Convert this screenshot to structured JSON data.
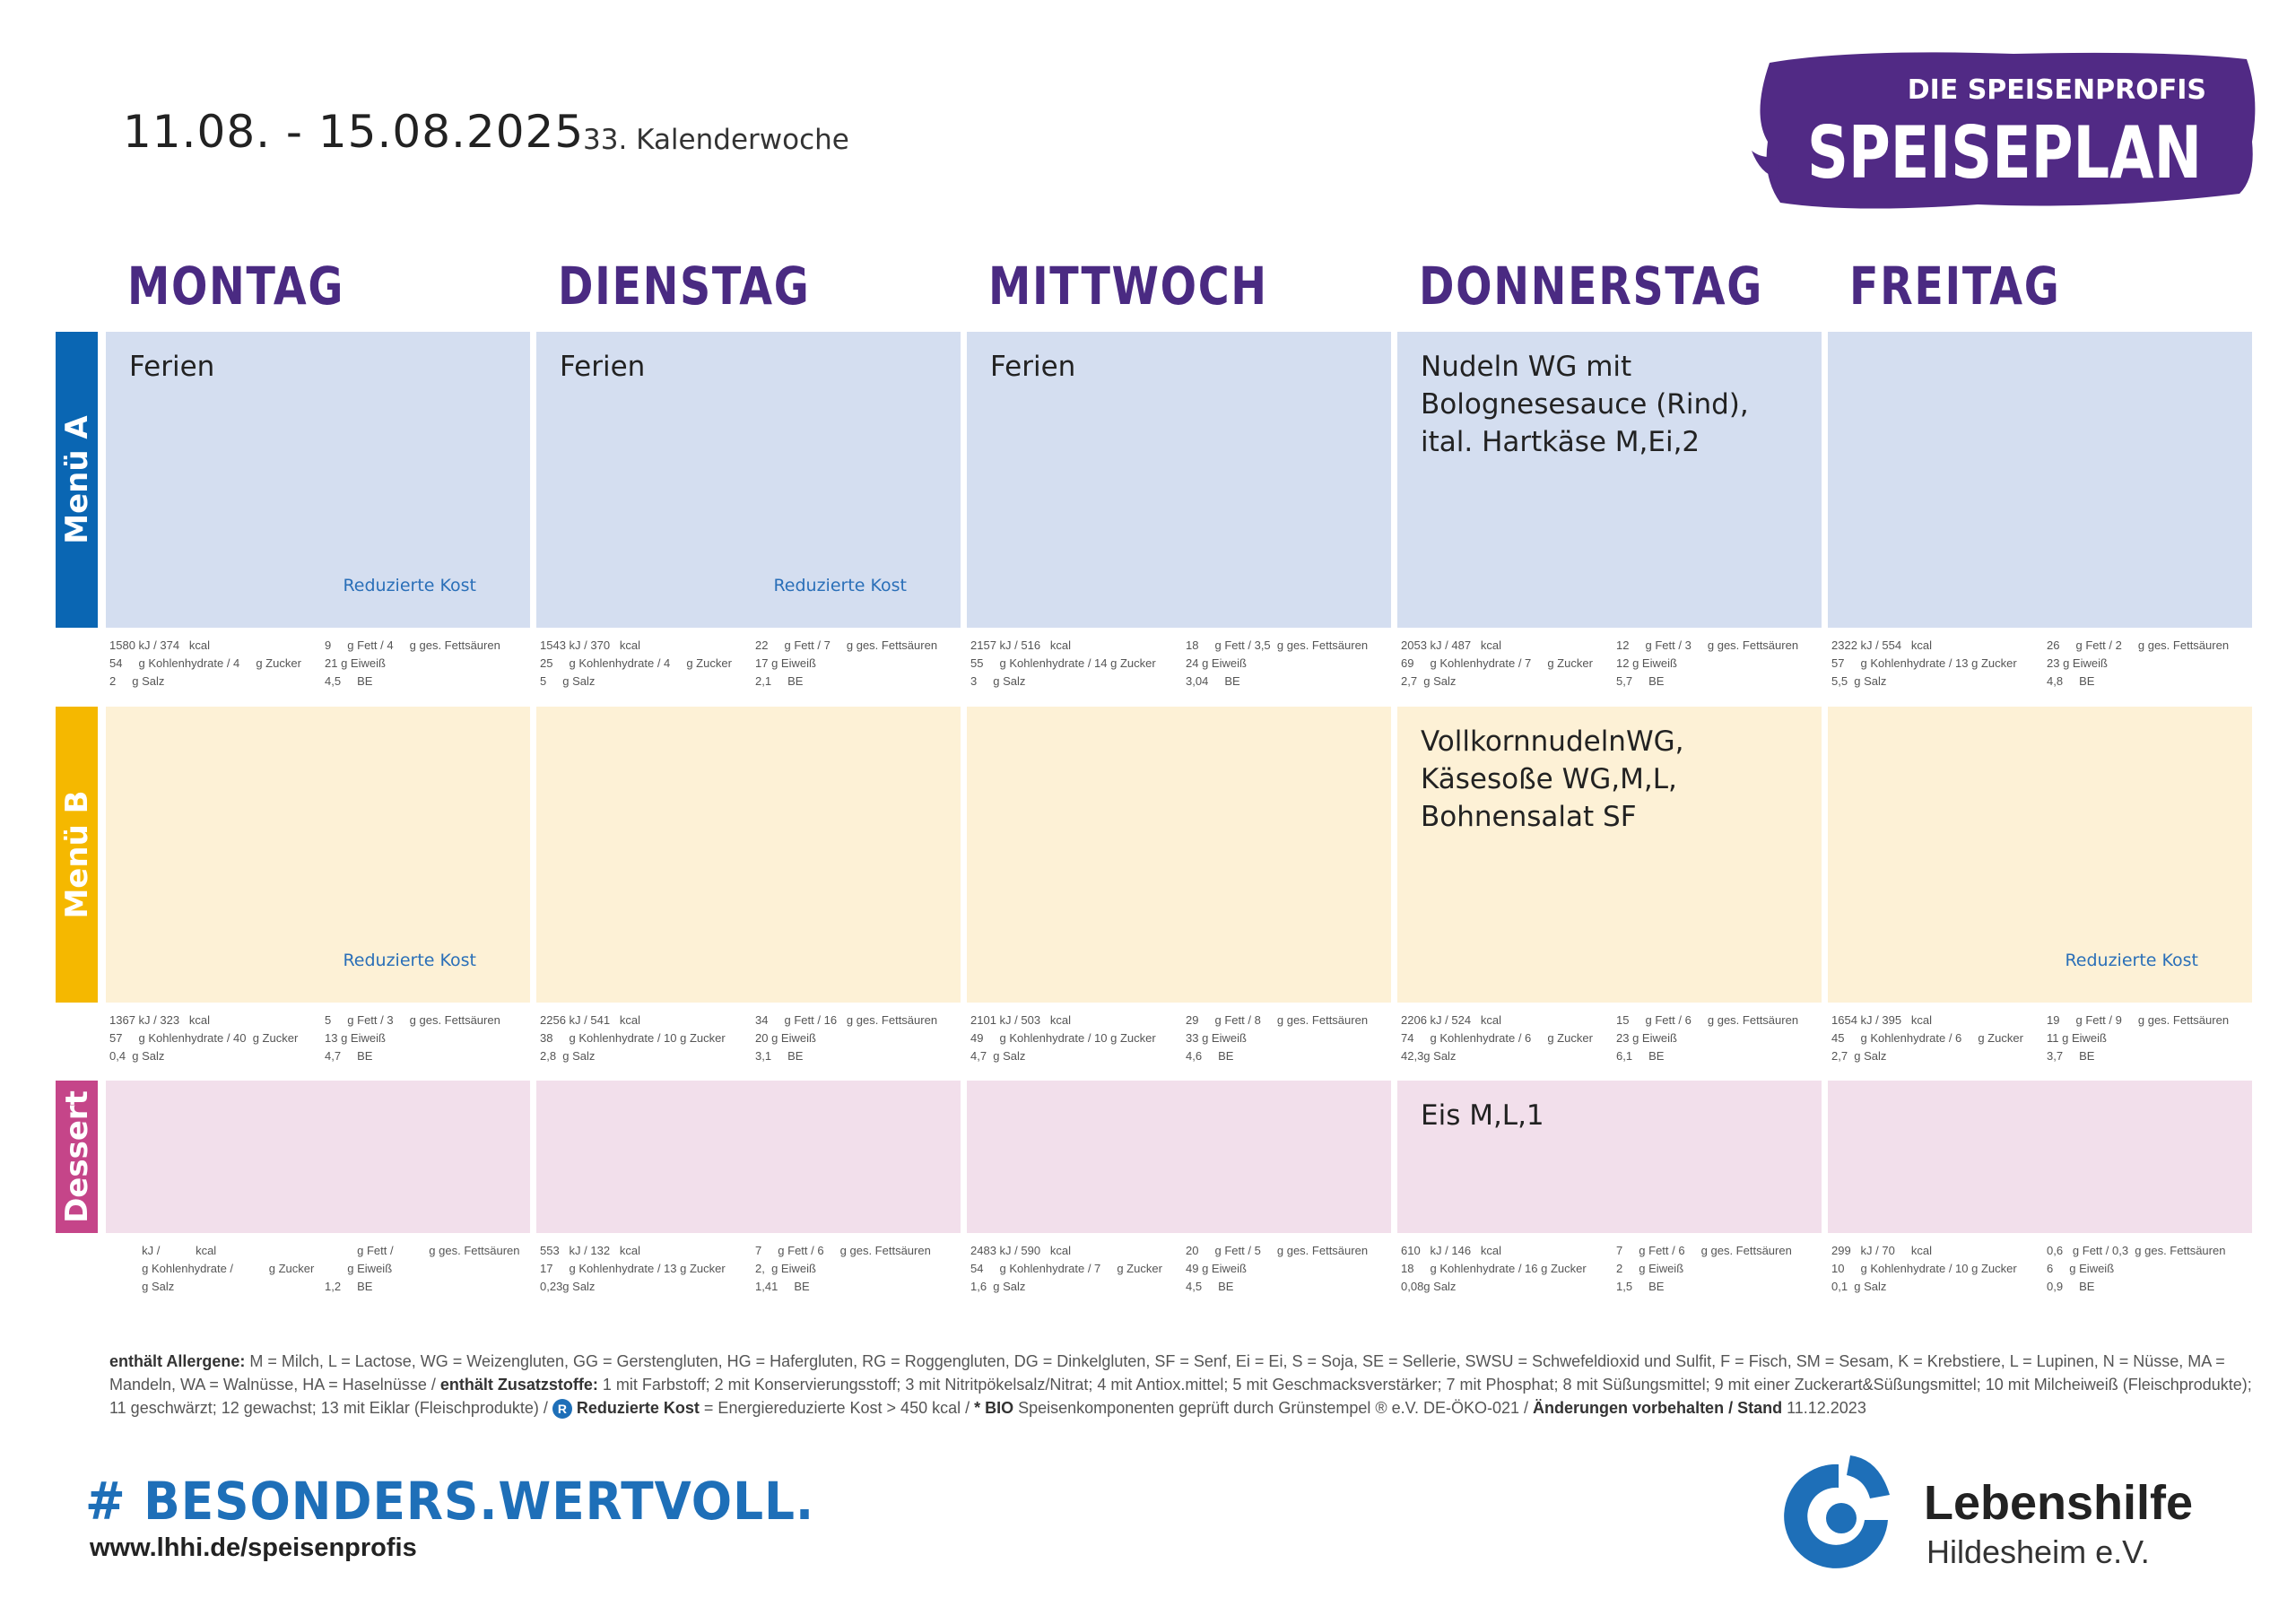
{
  "header": {
    "date_range": "11.08.  - 15.08.2025",
    "calendar_week": "33. Kalenderwoche"
  },
  "logo": {
    "top": "DIE SPEISENPROFIS",
    "main": "SPEISEPLAN",
    "brand_color": "#512a85"
  },
  "days": [
    "MONTAG",
    "DIENSTAG",
    "MITTWOCH",
    "DONNERSTAG",
    "FREITAG"
  ],
  "rows": [
    {
      "label": "Menü A",
      "label_color": "#0a66b3",
      "bg": "#d4def0",
      "cells": [
        {
          "text": "Ferien",
          "rk": "Reduzierte Kost",
          "n1l": "1580 kJ / 374   kcal",
          "n1r": "9     g Fett / 4     g ges. Fettsäuren",
          "n2l": "54     g Kohlenhydrate / 4     g Zucker",
          "n2r": "21 g Eiweiß",
          "n3l": "2     g Salz",
          "n3r": "4,5     BE"
        },
        {
          "text": "Ferien",
          "rk": "Reduzierte Kost",
          "n1l": "1543 kJ / 370   kcal",
          "n1r": "22     g Fett / 7     g ges. Fettsäuren",
          "n2l": "25     g Kohlenhydrate / 4     g Zucker",
          "n2r": "17 g Eiweiß",
          "n3l": "5     g Salz",
          "n3r": "2,1     BE"
        },
        {
          "text": "Ferien",
          "rk": "",
          "n1l": "2157 kJ / 516   kcal",
          "n1r": "18     g Fett / 3,5  g ges. Fettsäuren",
          "n2l": "55     g Kohlenhydrate / 14 g Zucker",
          "n2r": "24 g Eiweiß",
          "n3l": "3     g Salz",
          "n3r": "3,04     BE"
        },
        {
          "text": "Nudeln WG mit\nBolognesesauce (Rind),\nital. Hartkäse M,Ei,2",
          "rk": "",
          "n1l": "2053 kJ / 487   kcal",
          "n1r": "12     g Fett / 3     g ges. Fettsäuren",
          "n2l": "69     g Kohlenhydrate / 7     g Zucker",
          "n2r": "12 g Eiweiß",
          "n3l": "2,7  g Salz",
          "n3r": "5,7     BE"
        },
        {
          "text": "",
          "rk": "",
          "n1l": "2322 kJ / 554   kcal",
          "n1r": "26     g Fett / 2     g ges. Fettsäuren",
          "n2l": "57     g Kohlenhydrate / 13 g Zucker",
          "n2r": "23 g Eiweiß",
          "n3l": "5,5  g Salz",
          "n3r": "4,8     BE"
        }
      ]
    },
    {
      "label": "Menü B",
      "label_color": "#f5b800",
      "bg": "#fdf1d6",
      "cells": [
        {
          "text": "",
          "rk": "Reduzierte Kost",
          "n1l": "1367 kJ / 323   kcal",
          "n1r": "5     g Fett / 3     g ges. Fettsäuren",
          "n2l": "57     g Kohlenhydrate / 40  g Zucker",
          "n2r": "13 g Eiweiß",
          "n3l": "0,4  g Salz",
          "n3r": "4,7     BE"
        },
        {
          "text": "",
          "rk": "",
          "n1l": "2256 kJ / 541   kcal",
          "n1r": "34     g Fett / 16   g ges. Fettsäuren",
          "n2l": "38     g Kohlenhydrate / 10 g Zucker",
          "n2r": "20 g Eiweiß",
          "n3l": "2,8  g Salz",
          "n3r": "3,1     BE"
        },
        {
          "text": "",
          "rk": "",
          "n1l": "2101 kJ / 503   kcal",
          "n1r": "29     g Fett / 8     g ges. Fettsäuren",
          "n2l": "49     g Kohlenhydrate / 10 g Zucker",
          "n2r": "33 g Eiweiß",
          "n3l": "4,7  g Salz",
          "n3r": "4,6     BE"
        },
        {
          "text": "VollkornnudelnWG,\nKäsesoße WG,M,L,\nBohnensalat SF",
          "rk": "",
          "n1l": "2206 kJ / 524   kcal",
          "n1r": "15     g Fett / 6     g ges. Fettsäuren",
          "n2l": "74     g Kohlenhydrate / 6     g Zucker",
          "n2r": "23 g Eiweiß",
          "n3l": "42,3g Salz",
          "n3r": "6,1     BE"
        },
        {
          "text": "",
          "rk": "Reduzierte Kost",
          "n1l": "1654 kJ / 395   kcal",
          "n1r": "19     g Fett / 9     g ges. Fettsäuren",
          "n2l": "45     g Kohlenhydrate / 6     g Zucker",
          "n2r": "11 g Eiweiß",
          "n3l": "2,7  g Salz",
          "n3r": "3,7     BE"
        }
      ]
    },
    {
      "label": "Dessert",
      "label_color": "#c54589",
      "bg": "#f2dfeb",
      "cells": [
        {
          "text": "",
          "rk": "",
          "n1l": "          kJ /           kcal",
          "n1r": "          g Fett /           g ges. Fettsäuren",
          "n2l": "          g Kohlenhydrate /           g Zucker",
          "n2r": "       g Eiweiß",
          "n3l": "          g Salz",
          "n3r": "1,2     BE"
        },
        {
          "text": "",
          "rk": "",
          "n1l": "553   kJ / 132   kcal",
          "n1r": "7     g Fett / 6     g ges. Fettsäuren",
          "n2l": "17     g Kohlenhydrate / 13 g Zucker",
          "n2r": "2,  g Eiweiß",
          "n3l": "0,23g Salz",
          "n3r": "1,41     BE"
        },
        {
          "text": "",
          "rk": "",
          "n1l": "2483 kJ / 590   kcal",
          "n1r": "20     g Fett / 5     g ges. Fettsäuren",
          "n2l": "54     g Kohlenhydrate / 7     g Zucker",
          "n2r": "49 g Eiweiß",
          "n3l": "1,6  g Salz",
          "n3r": "4,5     BE"
        },
        {
          "text": "Eis  M,L,1",
          "rk": "",
          "n1l": "610   kJ / 146   kcal",
          "n1r": "7     g Fett / 6     g ges. Fettsäuren",
          "n2l": "18     g Kohlenhydrate / 16 g Zucker",
          "n2r": "2     g Eiweiß",
          "n3l": "0,08g Salz",
          "n3r": "1,5     BE"
        },
        {
          "text": "",
          "rk": "",
          "n1l": "299   kJ / 70     kcal",
          "n1r": "0,6   g Fett / 0,3  g ges. Fettsäuren",
          "n2l": "10     g Kohlenhydrate / 10 g Zucker",
          "n2r": "6     g Eiweiß",
          "n3l": "0,1  g Salz",
          "n3r": "0,9     BE"
        }
      ]
    }
  ],
  "allergens": {
    "label1": "enthält Allergene:",
    "text1": " M = Milch, L = Lactose, WG = Weizengluten, GG = Gerstengluten, HG = Hafergluten, RG = Roggengluten, DG = Dinkelgluten, SF = Senf, Ei = Ei, S = Soja, SE = Sellerie, SWSU = Schwefeldioxid und Sulfit, F = Fisch, SM = Sesam, K = Krebstiere, L = Lupinen, N = Nüsse, MA = Mandeln, WA = Walnüsse, HA =  Haselnüsse / ",
    "label2": "enthält Zusatzstoffe:",
    "text2": " 1 mit Farbstoff; 2 mit Konservierungsstoff; 3 mit Nitritpökelsalz/Nitrat; 4 mit Antiox.mittel; 5 mit Geschmacksverstärker; 7 mit Phosphat; 8 mit Süßungsmittel; 9 mit einer Zuckerart&Süßungsmittel; 10 mit Milcheiweiß (Fleischprodukte); 11 geschwärzt; 12 gewachst; 13 mit Eiklar (Fleischprodukte) / ",
    "r_symbol": "R",
    "label3": "Reduzierte Kost",
    "text3": " = Energiereduzierte Kost > 450 kcal / ",
    "label4": "* BIO",
    "text4": " Speisenkomponenten geprüft durch Grünstempel ® e.V. DE-ÖKO-021 / ",
    "label5": "Änderungen vorbehalten / Stand",
    "text5": "  11.12.2023"
  },
  "footer": {
    "hashtag": "# BESONDERS.WERTVOLL.",
    "website": "www.lhhi.de/speisenprofis",
    "org_name": "Lebenshilfe",
    "org_sub": "Hildesheim e.V.",
    "accent": "#1e6fb8"
  }
}
